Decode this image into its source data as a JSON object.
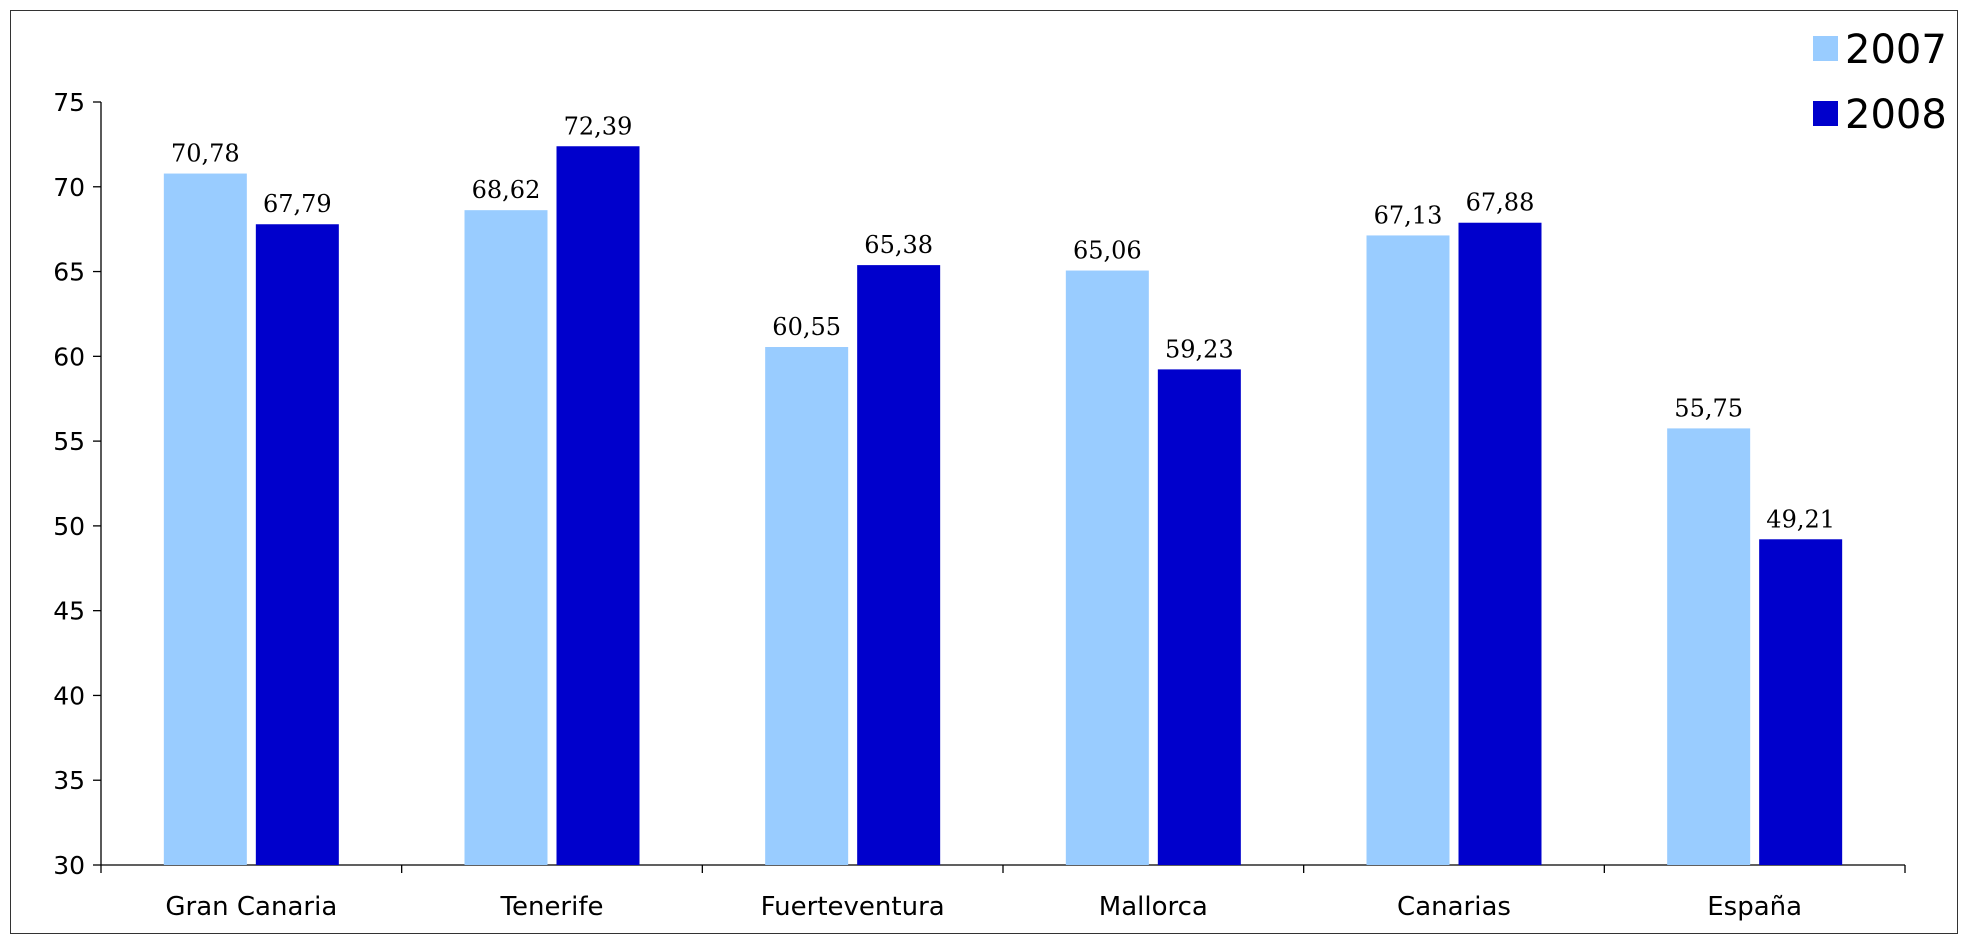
{
  "chart_data": {
    "type": "bar",
    "categories": [
      "Gran Canaria",
      "Tenerife",
      "Fuerteventura",
      "Mallorca",
      "Canarias",
      "España"
    ],
    "series": [
      {
        "name": "2007",
        "color": "#99ccff",
        "values": [
          70.78,
          68.62,
          60.55,
          65.06,
          67.13,
          55.75
        ],
        "labels": [
          "70,78",
          "68,62",
          "60,55",
          "65,06",
          "67,13",
          "55,75"
        ]
      },
      {
        "name": "2008",
        "color": "#0000cc",
        "values": [
          67.79,
          72.39,
          65.38,
          59.23,
          67.88,
          49.21
        ],
        "labels": [
          "67,79",
          "72,39",
          "65,38",
          "59,23",
          "67,88",
          "49,21"
        ]
      }
    ],
    "title": "",
    "xlabel": "",
    "ylabel": "",
    "ylim": [
      30,
      75
    ],
    "yticks": [
      "30",
      "35",
      "40",
      "45",
      "50",
      "55",
      "60",
      "65",
      "70",
      "75"
    ],
    "grid": false,
    "legend_position": "top-right"
  }
}
